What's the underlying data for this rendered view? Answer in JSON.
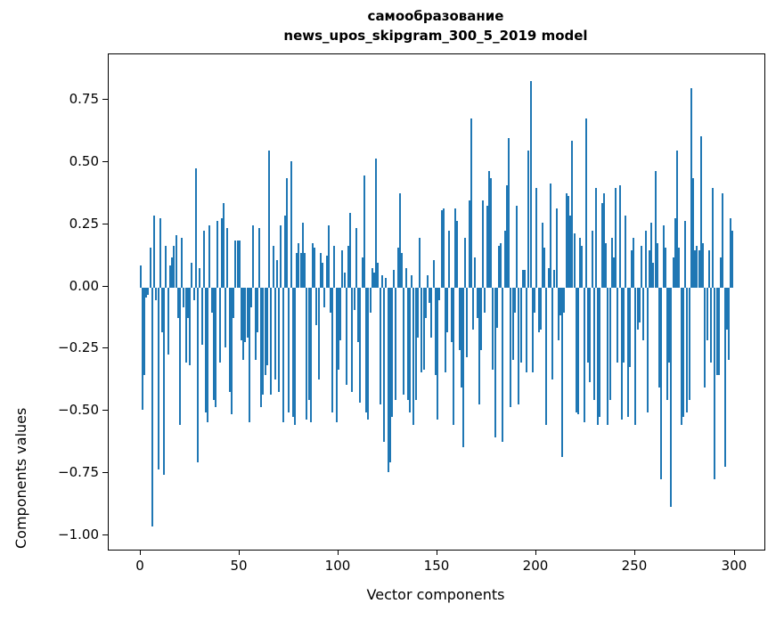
{
  "figure": {
    "title_line1": "самообразование",
    "title_line2": "news_upos_skipgram_300_5_2019 model"
  },
  "chart_data": {
    "type": "bar",
    "title": "самообразование — news_upos_skipgram_300_5_2019 model",
    "xlabel": "Vector components",
    "ylabel": "Components values",
    "bar_color": "#1f77b4",
    "spine_color": "#000000",
    "x_ticks": [
      0,
      50,
      100,
      150,
      200,
      250,
      300
    ],
    "y_ticks": [
      0.75,
      0.5,
      0.25,
      0.0,
      -0.25,
      -0.5,
      -0.75,
      -1.0
    ],
    "xlim": [
      -16,
      315
    ],
    "ylim": [
      -1.054,
      0.936
    ],
    "grid": false,
    "legend": null,
    "bar_width_units": 0.8,
    "x_start": 0,
    "values": [
      0.09,
      -0.49,
      -0.35,
      -0.04,
      -0.03,
      0.16,
      -0.96,
      0.29,
      -0.05,
      -0.73,
      0.28,
      -0.18,
      -0.75,
      0.17,
      -0.27,
      0.09,
      0.12,
      0.17,
      0.21,
      -0.12,
      -0.55,
      0.2,
      -0.08,
      -0.3,
      -0.12,
      -0.31,
      0.1,
      -0.05,
      0.48,
      -0.7,
      0.08,
      -0.23,
      0.23,
      -0.5,
      -0.54,
      0.25,
      -0.1,
      -0.45,
      -0.48,
      0.27,
      -0.3,
      0.28,
      0.34,
      -0.24,
      0.24,
      -0.42,
      -0.51,
      -0.12,
      0.19,
      0.19,
      0.19,
      -0.21,
      -0.29,
      -0.22,
      -0.2,
      -0.54,
      -0.08,
      0.25,
      -0.29,
      -0.18,
      0.24,
      -0.48,
      -0.43,
      -0.35,
      -0.31,
      0.55,
      -0.43,
      0.17,
      -0.37,
      0.11,
      -0.42,
      0.25,
      -0.54,
      0.29,
      0.44,
      -0.5,
      0.51,
      -0.52,
      -0.55,
      0.14,
      0.18,
      0.14,
      0.26,
      0.14,
      -0.53,
      -0.45,
      -0.54,
      0.18,
      0.16,
      -0.15,
      -0.37,
      0.14,
      0.1,
      -0.08,
      0.13,
      0.25,
      -0.1,
      -0.5,
      0.17,
      -0.54,
      -0.33,
      -0.21,
      0.15,
      0.06,
      -0.39,
      0.17,
      0.3,
      -0.42,
      -0.09,
      0.24,
      -0.22,
      -0.46,
      0.12,
      0.45,
      -0.5,
      -0.53,
      -0.1,
      0.08,
      0.06,
      0.52,
      0.1,
      -0.47,
      0.05,
      -0.62,
      0.04,
      -0.74,
      -0.7,
      -0.52,
      0.07,
      -0.45,
      0.16,
      0.38,
      0.14,
      -0.43,
      0.08,
      -0.45,
      -0.5,
      0.05,
      -0.55,
      -0.45,
      -0.2,
      0.2,
      -0.34,
      -0.33,
      -0.12,
      0.05,
      -0.06,
      -0.2,
      0.11,
      -0.35,
      -0.53,
      -0.05,
      0.31,
      0.32,
      -0.34,
      -0.18,
      0.23,
      -0.22,
      -0.55,
      0.32,
      0.27,
      -0.25,
      -0.4,
      -0.64,
      0.2,
      -0.28,
      0.35,
      0.68,
      -0.17,
      0.12,
      -0.12,
      -0.47,
      -0.25,
      0.35,
      -0.1,
      0.33,
      0.47,
      0.44,
      -0.33,
      -0.6,
      -0.16,
      0.17,
      0.18,
      -0.62,
      0.23,
      0.41,
      0.6,
      -0.48,
      -0.29,
      -0.1,
      0.33,
      -0.47,
      -0.3,
      0.07,
      0.07,
      -0.34,
      0.55,
      0.83,
      -0.34,
      -0.1,
      0.4,
      -0.18,
      -0.17,
      0.26,
      0.16,
      -0.55,
      0.08,
      0.42,
      -0.37,
      0.07,
      0.32,
      -0.21,
      -0.11,
      -0.68,
      -0.1,
      0.38,
      0.37,
      0.29,
      0.59,
      0.22,
      -0.5,
      -0.51,
      0.2,
      0.17,
      -0.54,
      0.68,
      -0.3,
      -0.38,
      0.23,
      -0.45,
      0.4,
      -0.55,
      -0.52,
      0.34,
      0.38,
      0.18,
      -0.55,
      -0.45,
      0.2,
      0.12,
      0.4,
      -0.3,
      0.41,
      -0.53,
      -0.3,
      0.29,
      -0.52,
      -0.32,
      0.15,
      0.2,
      -0.55,
      -0.17,
      -0.14,
      0.17,
      -0.21,
      0.23,
      -0.5,
      0.15,
      0.26,
      0.1,
      0.47,
      0.18,
      -0.4,
      -0.77,
      0.25,
      0.16,
      -0.45,
      -0.3,
      -0.88,
      0.12,
      0.28,
      0.55,
      0.16,
      -0.55,
      -0.52,
      0.27,
      -0.5,
      -0.45,
      0.8,
      0.44,
      0.15,
      0.17,
      0.15,
      0.61,
      0.18,
      -0.4,
      -0.21,
      0.15,
      -0.3,
      0.4,
      -0.77,
      -0.35,
      -0.35,
      0.12,
      0.38,
      -0.72,
      -0.17,
      -0.29,
      0.28,
      0.23
    ]
  }
}
